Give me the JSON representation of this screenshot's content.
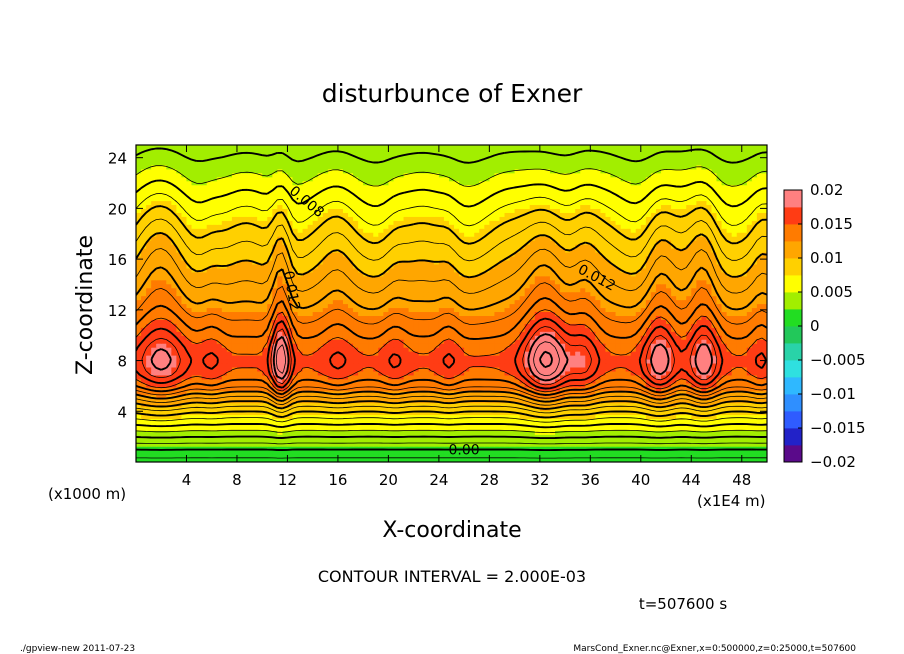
{
  "chart_data": {
    "type": "heatmap",
    "title": "disturbunce of Exner",
    "xlabel": "X-coordinate",
    "ylabel": "Z-coordinate",
    "x_unit_note": "(x1E4 m)",
    "y_unit_note": "(x1000 m)",
    "xlim": [
      0,
      50
    ],
    "ylim": [
      0,
      25
    ],
    "x_ticks": [
      4,
      8,
      12,
      16,
      20,
      24,
      28,
      32,
      36,
      40,
      44,
      48
    ],
    "y_ticks": [
      4,
      8,
      12,
      16,
      20,
      24
    ],
    "x_tick_labels": [
      "4",
      "8",
      "12",
      "16",
      "20",
      "24",
      "28",
      "32",
      "36",
      "40",
      "44",
      "48"
    ],
    "y_tick_labels": [
      "4",
      "8",
      "12",
      "16",
      "20",
      "24"
    ],
    "colorbar": {
      "min": -0.02,
      "max": 0.02,
      "tick_values": [
        0.02,
        0.015,
        0.01,
        0.005,
        0,
        -0.005,
        -0.01,
        -0.015,
        -0.02
      ],
      "tick_labels": [
        "0.02",
        "0.015",
        "0.01",
        "0.005",
        "0",
        "−0.005",
        "−0.01",
        "−0.015",
        "−0.02"
      ]
    },
    "contour_labels": [
      {
        "text": "0.008",
        "x": 13.5,
        "z": 20.5,
        "angle": 40
      },
      {
        "text": "0.012",
        "x": 12.3,
        "z": 13.5,
        "angle": 80
      },
      {
        "text": "0.012",
        "x": 36.5,
        "z": 14.5,
        "angle": 28
      },
      {
        "text": "0.00",
        "x": 26.0,
        "z": 0.9,
        "angle": 0
      }
    ],
    "field_profile": {
      "z": [
        0,
        1,
        2,
        3,
        4,
        5,
        6,
        7,
        8,
        9,
        10,
        12,
        14,
        16,
        18,
        20,
        22,
        24,
        25
      ],
      "values": [
        0.0005,
        0.002,
        0.004,
        0.006,
        0.008,
        0.0105,
        0.0132,
        0.0148,
        0.0152,
        0.0147,
        0.0138,
        0.0122,
        0.0108,
        0.0094,
        0.008,
        0.0066,
        0.0052,
        0.004,
        0.0035
      ]
    },
    "ridges": [
      {
        "x": 2.0,
        "amp": 0.003,
        "w": 2.0
      },
      {
        "x": 6.0,
        "amp": 0.001,
        "w": 1.0
      },
      {
        "x": 11.5,
        "amp": 0.0045,
        "w": 0.8
      },
      {
        "x": 16.0,
        "amp": 0.001,
        "w": 1.2
      },
      {
        "x": 20.5,
        "amp": 0.001,
        "w": 1.0
      },
      {
        "x": 24.8,
        "amp": 0.001,
        "w": 0.9
      },
      {
        "x": 32.5,
        "amp": 0.0048,
        "w": 1.8
      },
      {
        "x": 35.5,
        "amp": 0.002,
        "w": 1.2
      },
      {
        "x": 41.5,
        "amp": 0.0035,
        "w": 1.3
      },
      {
        "x": 45.0,
        "amp": 0.0035,
        "w": 1.2
      },
      {
        "x": 49.5,
        "amp": 0.001,
        "w": 0.8
      }
    ]
  },
  "annotations": {
    "contour_interval": "CONTOUR INTERVAL = 2.000E-03",
    "time": "t=507600 s",
    "footer_left": "./gpview-new   2011-07-23",
    "footer_right": "MarsCond_Exner.nc@Exner,x=0:500000,z=0:25000,t=507600"
  }
}
